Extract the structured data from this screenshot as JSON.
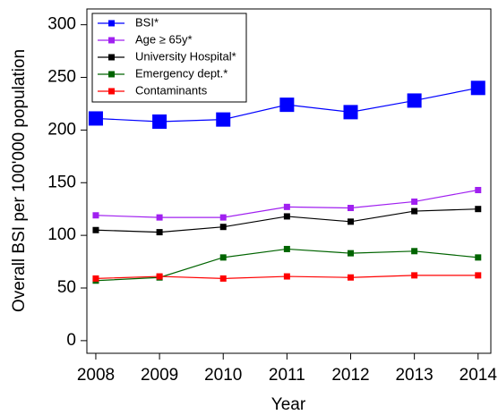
{
  "chart_data": {
    "type": "line",
    "x_label": "Year",
    "y_label": "Overall BSI per 100'000 population",
    "x": [
      2008,
      2009,
      2010,
      2011,
      2012,
      2013,
      2014
    ],
    "xlim": [
      2007.86,
      2014.2
    ],
    "xticks": [
      2008,
      2009,
      2010,
      2011,
      2012,
      2013,
      2014
    ],
    "ylim": [
      -12,
      315
    ],
    "yticks": [
      0,
      50,
      100,
      150,
      200,
      250,
      300
    ],
    "legend": "upper left",
    "series": [
      {
        "name": "BSI*",
        "color": "#0000ff",
        "values": [
          211,
          208,
          210,
          224,
          217,
          228,
          240
        ]
      },
      {
        "name": "Age ≥ 65y*",
        "color": "#a020f0",
        "values": [
          119,
          117,
          117,
          127,
          126,
          132,
          143
        ]
      },
      {
        "name": "University Hospital*",
        "color": "#000000",
        "values": [
          105,
          103,
          108,
          118,
          113,
          123,
          125
        ]
      },
      {
        "name": "Emergency dept.*",
        "color": "#006400",
        "values": [
          57,
          60,
          79,
          87,
          83,
          85,
          79
        ]
      },
      {
        "name": "Contaminants",
        "color": "#ff0000",
        "values": [
          59,
          61,
          59,
          61,
          60,
          62,
          62
        ]
      }
    ]
  }
}
